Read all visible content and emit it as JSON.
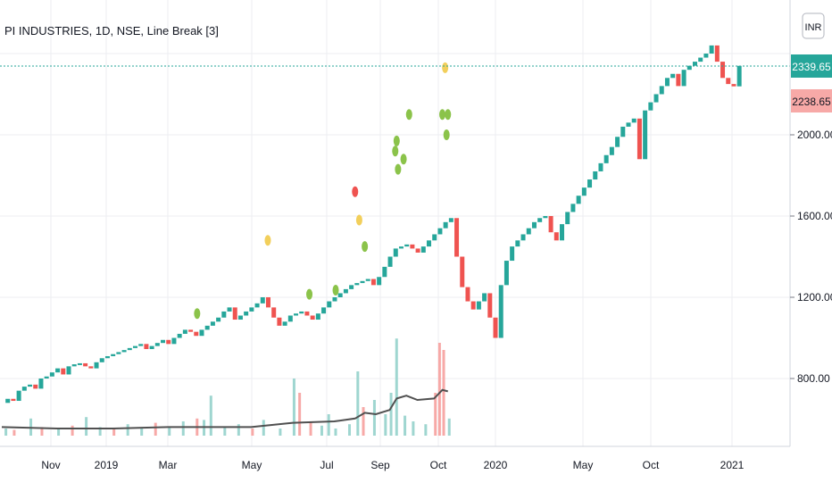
{
  "header": {
    "title": "PI INDUSTRIES, 1D, NSE, Line Break [3]",
    "currency": "INR"
  },
  "price_tags": {
    "last": "2339.65",
    "prev": "2238.65"
  },
  "colors": {
    "up": "#26a69a",
    "down": "#ef5350",
    "vol_up": "#9fd6d0",
    "vol_down": "#f7a9a7",
    "marker_green": "#8bc34a",
    "marker_yellow": "#f2cf5b",
    "marker_red": "#ef5350",
    "ma_line": "#505050",
    "grid": "#eceef2",
    "last_line": "#26a69a"
  },
  "chart_data": {
    "type": "line_break",
    "title": "PI INDUSTRIES, 1D, NSE, Line Break [3]",
    "y_ticks": [
      "2000.00",
      "1600.00",
      "1200.00",
      "800.00"
    ],
    "x_ticks": [
      "Nov",
      "2019",
      "Mar",
      "May",
      "Jul",
      "Sep",
      "Oct",
      "2020",
      "May",
      "Oct",
      "2021"
    ],
    "last_price": 2339.65,
    "prev_price": 2238.65,
    "close_path": [
      [
        0,
        680
      ],
      [
        4,
        700
      ],
      [
        8,
        690
      ],
      [
        12,
        740
      ],
      [
        16,
        760
      ],
      [
        20,
        770
      ],
      [
        24,
        750
      ],
      [
        28,
        800
      ],
      [
        32,
        810
      ],
      [
        36,
        830
      ],
      [
        40,
        850
      ],
      [
        44,
        820
      ],
      [
        48,
        860
      ],
      [
        52,
        870
      ],
      [
        56,
        875
      ],
      [
        60,
        860
      ],
      [
        64,
        850
      ],
      [
        68,
        880
      ],
      [
        72,
        900
      ],
      [
        76,
        910
      ],
      [
        80,
        920
      ],
      [
        84,
        930
      ],
      [
        88,
        940
      ],
      [
        92,
        950
      ],
      [
        96,
        960
      ],
      [
        100,
        970
      ],
      [
        104,
        945
      ],
      [
        108,
        960
      ],
      [
        112,
        975
      ],
      [
        116,
        990
      ],
      [
        120,
        970
      ],
      [
        124,
        1000
      ],
      [
        128,
        1020
      ],
      [
        132,
        1040
      ],
      [
        136,
        1030
      ],
      [
        140,
        1010
      ],
      [
        144,
        1040
      ],
      [
        148,
        1060
      ],
      [
        152,
        1080
      ],
      [
        156,
        1100
      ],
      [
        160,
        1130
      ],
      [
        164,
        1150
      ],
      [
        168,
        1090
      ],
      [
        172,
        1110
      ],
      [
        176,
        1130
      ],
      [
        180,
        1150
      ],
      [
        184,
        1170
      ],
      [
        188,
        1200
      ],
      [
        192,
        1150
      ],
      [
        196,
        1100
      ],
      [
        200,
        1060
      ],
      [
        204,
        1080
      ],
      [
        208,
        1110
      ],
      [
        212,
        1120
      ],
      [
        216,
        1130
      ],
      [
        220,
        1110
      ],
      [
        224,
        1090
      ],
      [
        228,
        1120
      ],
      [
        232,
        1150
      ],
      [
        236,
        1180
      ],
      [
        240,
        1200
      ],
      [
        244,
        1220
      ],
      [
        248,
        1240
      ],
      [
        252,
        1260
      ],
      [
        256,
        1270
      ],
      [
        260,
        1280
      ],
      [
        264,
        1290
      ],
      [
        268,
        1260
      ],
      [
        272,
        1300
      ],
      [
        276,
        1350
      ],
      [
        280,
        1400
      ],
      [
        284,
        1440
      ],
      [
        288,
        1450
      ],
      [
        292,
        1460
      ],
      [
        296,
        1440
      ],
      [
        300,
        1420
      ],
      [
        304,
        1450
      ],
      [
        308,
        1480
      ],
      [
        312,
        1510
      ],
      [
        316,
        1540
      ],
      [
        320,
        1570
      ],
      [
        324,
        1590
      ],
      [
        328,
        1400
      ],
      [
        332,
        1250
      ],
      [
        336,
        1180
      ],
      [
        340,
        1140
      ],
      [
        344,
        1180
      ],
      [
        348,
        1220
      ],
      [
        352,
        1100
      ],
      [
        356,
        1000
      ],
      [
        360,
        1260
      ],
      [
        364,
        1380
      ],
      [
        368,
        1450
      ],
      [
        372,
        1480
      ],
      [
        376,
        1510
      ],
      [
        380,
        1540
      ],
      [
        384,
        1570
      ],
      [
        388,
        1590
      ],
      [
        392,
        1600
      ],
      [
        396,
        1520
      ],
      [
        400,
        1480
      ],
      [
        404,
        1560
      ],
      [
        408,
        1620
      ],
      [
        412,
        1660
      ],
      [
        416,
        1700
      ],
      [
        420,
        1740
      ],
      [
        424,
        1780
      ],
      [
        428,
        1820
      ],
      [
        432,
        1860
      ],
      [
        436,
        1900
      ],
      [
        440,
        1940
      ],
      [
        444,
        1990
      ],
      [
        448,
        2040
      ],
      [
        452,
        2060
      ],
      [
        456,
        2080
      ],
      [
        460,
        1880
      ],
      [
        464,
        2120
      ],
      [
        468,
        2160
      ],
      [
        472,
        2200
      ],
      [
        476,
        2240
      ],
      [
        480,
        2280
      ],
      [
        484,
        2300
      ],
      [
        488,
        2240
      ],
      [
        492,
        2320
      ],
      [
        496,
        2340
      ],
      [
        500,
        2360
      ],
      [
        504,
        2380
      ],
      [
        508,
        2400
      ],
      [
        512,
        2440
      ],
      [
        516,
        2360
      ],
      [
        520,
        2280
      ],
      [
        524,
        2250
      ],
      [
        528,
        2238.65
      ],
      [
        532,
        2339.65
      ]
    ],
    "markers": [
      {
        "t": 141,
        "y": 1120,
        "kind": "green"
      },
      {
        "t": 192,
        "y": 1480,
        "kind": "yellow"
      },
      {
        "t": 222,
        "y": 1215,
        "kind": "green"
      },
      {
        "t": 241,
        "y": 1235,
        "kind": "green"
      },
      {
        "t": 255,
        "y": 1720,
        "kind": "red"
      },
      {
        "t": 258,
        "y": 1580,
        "kind": "yellow"
      },
      {
        "t": 262,
        "y": 1450,
        "kind": "green"
      },
      {
        "t": 286,
        "y": 1830,
        "kind": "green"
      },
      {
        "t": 290,
        "y": 1880,
        "kind": "green"
      },
      {
        "t": 284,
        "y": 1920,
        "kind": "green"
      },
      {
        "t": 285,
        "y": 1970,
        "kind": "green"
      },
      {
        "t": 294,
        "y": 2100,
        "kind": "green"
      },
      {
        "t": 320,
        "y": 2330,
        "kind": "yellow"
      },
      {
        "t": 318,
        "y": 2100,
        "kind": "green"
      },
      {
        "t": 322,
        "y": 2100,
        "kind": "green"
      },
      {
        "t": 321,
        "y": 2000,
        "kind": "green"
      }
    ],
    "volume": [
      [
        2,
        0.05,
        "u"
      ],
      [
        8,
        0.04,
        "d"
      ],
      [
        20,
        0.12,
        "u"
      ],
      [
        28,
        0.06,
        "d"
      ],
      [
        40,
        0.05,
        "u"
      ],
      [
        50,
        0.07,
        "d"
      ],
      [
        60,
        0.13,
        "u"
      ],
      [
        70,
        0.06,
        "u"
      ],
      [
        80,
        0.05,
        "d"
      ],
      [
        90,
        0.08,
        "u"
      ],
      [
        100,
        0.05,
        "u"
      ],
      [
        110,
        0.09,
        "d"
      ],
      [
        120,
        0.06,
        "u"
      ],
      [
        130,
        0.1,
        "u"
      ],
      [
        140,
        0.12,
        "d"
      ],
      [
        145,
        0.11,
        "u"
      ],
      [
        150,
        0.28,
        "u"
      ],
      [
        160,
        0.06,
        "u"
      ],
      [
        170,
        0.08,
        "u"
      ],
      [
        180,
        0.05,
        "d"
      ],
      [
        188,
        0.11,
        "u"
      ],
      [
        200,
        0.05,
        "u"
      ],
      [
        210,
        0.4,
        "u"
      ],
      [
        214,
        0.3,
        "d"
      ],
      [
        222,
        0.1,
        "d"
      ],
      [
        230,
        0.07,
        "u"
      ],
      [
        235,
        0.15,
        "u"
      ],
      [
        240,
        0.05,
        "u"
      ],
      [
        250,
        0.08,
        "u"
      ],
      [
        256,
        0.45,
        "u"
      ],
      [
        260,
        0.2,
        "d"
      ],
      [
        268,
        0.25,
        "u"
      ],
      [
        276,
        0.15,
        "u"
      ],
      [
        280,
        0.3,
        "u"
      ],
      [
        284,
        0.68,
        "u"
      ],
      [
        290,
        0.14,
        "u"
      ],
      [
        296,
        0.1,
        "u"
      ],
      [
        305,
        0.08,
        "u"
      ],
      [
        312,
        0.3,
        "d"
      ],
      [
        315,
        0.65,
        "d"
      ],
      [
        318,
        0.6,
        "d"
      ],
      [
        322,
        0.12,
        "u"
      ]
    ],
    "ma": [
      [
        0,
        0.06
      ],
      [
        40,
        0.05
      ],
      [
        80,
        0.05
      ],
      [
        120,
        0.06
      ],
      [
        150,
        0.06
      ],
      [
        180,
        0.06
      ],
      [
        210,
        0.09
      ],
      [
        240,
        0.1
      ],
      [
        255,
        0.12
      ],
      [
        262,
        0.16
      ],
      [
        270,
        0.15
      ],
      [
        280,
        0.18
      ],
      [
        285,
        0.26
      ],
      [
        292,
        0.28
      ],
      [
        300,
        0.25
      ],
      [
        312,
        0.26
      ],
      [
        318,
        0.32
      ],
      [
        322,
        0.31
      ]
    ]
  }
}
